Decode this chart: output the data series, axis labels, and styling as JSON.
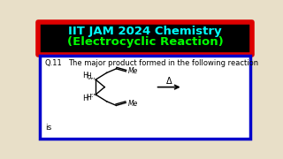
{
  "title_line1": "IIT JAM 2024 Chemistry",
  "title_line2": "(Electrocyclic Reaction)",
  "title_color_1": "#00ffff",
  "title_color_2": "#00ff00",
  "title_bg": "#000000",
  "title_border_color": "#dd0000",
  "bg_color": "#e8dfc8",
  "box_bg": "#ffffff",
  "box_border": "#0000cc",
  "question_num": "Q.11",
  "question_text": "The major product formed in the following reaction",
  "is_text": "is",
  "delta_symbol": "Δ"
}
